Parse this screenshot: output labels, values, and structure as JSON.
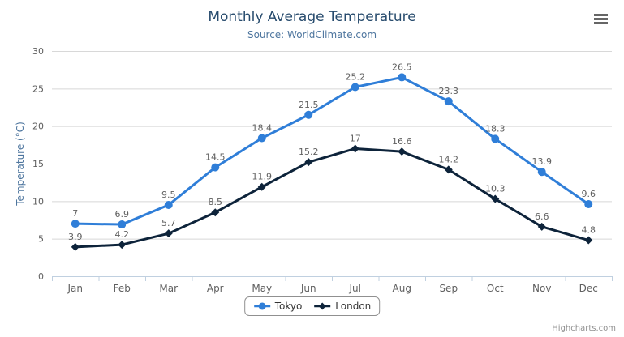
{
  "header": {
    "title": "Monthly Average Temperature",
    "subtitle": "Source: WorldClimate.com"
  },
  "chart_data": {
    "type": "line",
    "title": "Monthly Average Temperature",
    "subtitle": "Source: WorldClimate.com",
    "categories": [
      "Jan",
      "Feb",
      "Mar",
      "Apr",
      "May",
      "Jun",
      "Jul",
      "Aug",
      "Sep",
      "Oct",
      "Nov",
      "Dec"
    ],
    "series": [
      {
        "name": "Tokyo",
        "color": "#2f7ed8",
        "marker": "circle",
        "values": [
          7,
          6.9,
          9.5,
          14.5,
          18.4,
          21.5,
          25.2,
          26.5,
          23.3,
          18.3,
          13.9,
          9.6
        ]
      },
      {
        "name": "London",
        "color": "#0d233a",
        "marker": "diamond",
        "values": [
          3.9,
          4.2,
          5.7,
          8.5,
          11.9,
          15.2,
          17,
          16.6,
          14.2,
          10.3,
          6.6,
          4.8
        ]
      }
    ],
    "xlabel": "",
    "ylabel": "Temperature (°C)",
    "ylim": [
      0,
      30
    ],
    "ytick_step": 5,
    "grid": true,
    "data_labels": true,
    "legend_position": "bottom"
  },
  "colors": {
    "title": "#274b6d",
    "subtitle": "#4d759e",
    "axis_title": "#4d759e",
    "axis_label": "#606060",
    "gridline": "#d8d8d8",
    "axis_line": "#c0d0e0",
    "legend_border": "#909090",
    "legend_text": "#333333",
    "credits": "#909090",
    "menu_icon": "#666666"
  },
  "export_menu": {
    "icon": "hamburger-menu-icon"
  },
  "credits": {
    "label": "Highcharts.com"
  }
}
